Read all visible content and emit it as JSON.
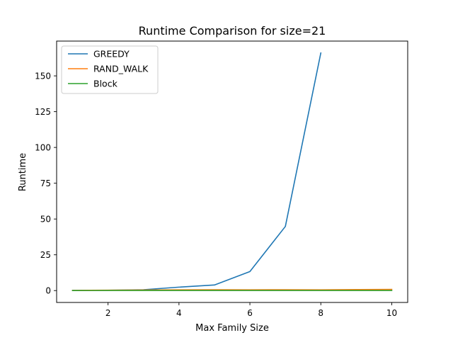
{
  "chart_data": {
    "type": "line",
    "title": "Runtime Comparison for size=21",
    "xlabel": "Max Family Size",
    "ylabel": "Runtime",
    "xlim": [
      0.55,
      10.45
    ],
    "ylim": [
      -8.3,
      174.3
    ],
    "xticks": [
      2,
      4,
      6,
      8,
      10
    ],
    "yticks": [
      0,
      25,
      50,
      75,
      100,
      125,
      150
    ],
    "grid": false,
    "legend_position": "top-left",
    "series": [
      {
        "name": "GREEDY",
        "color": "#1f77b4",
        "x": [
          1,
          2,
          3,
          4,
          5,
          6,
          7,
          8
        ],
        "y": [
          0.1,
          0.2,
          0.6,
          2.4,
          3.9,
          13.3,
          44.8,
          166.0
        ]
      },
      {
        "name": "RAND_WALK",
        "color": "#ff7f0e",
        "x": [
          1,
          2,
          3,
          4,
          5,
          6,
          7,
          8,
          9,
          10
        ],
        "y": [
          0.1,
          0.3,
          0.4,
          0.5,
          0.6,
          0.5,
          0.6,
          0.5,
          0.7,
          0.8
        ]
      },
      {
        "name": "Block",
        "color": "#2ca02c",
        "x": [
          1,
          2,
          3,
          4,
          5,
          6,
          7,
          8,
          9,
          10
        ],
        "y": [
          0.0,
          0.1,
          0.1,
          0.1,
          0.1,
          0.1,
          0.1,
          0.1,
          0.1,
          0.1
        ]
      }
    ]
  }
}
